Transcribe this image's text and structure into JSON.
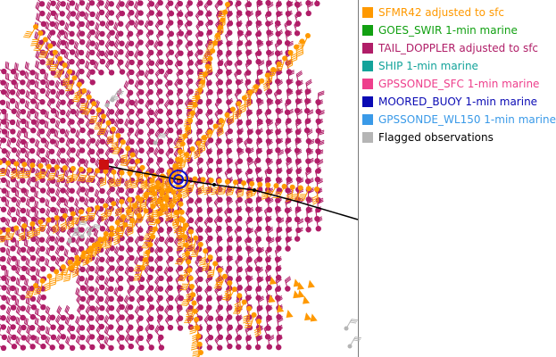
{
  "colors": {
    "sfmr": "#ff9900",
    "tail_doppler": "#b01e68",
    "track": "#000000",
    "center_marker": "#1010cc",
    "storm_square": "#cc1010",
    "flagged": "#b5b5b5"
  },
  "legend": {
    "items": [
      {
        "label": "SFMR42 adjusted to sfc",
        "swatch_color": "#ff9900",
        "text_color": "#ff9900"
      },
      {
        "label": "GOES_SWIR 1-min marine",
        "swatch_color": "#12a012",
        "text_color": "#12a012"
      },
      {
        "label": "TAIL_DOPPLER adjusted to sfc",
        "swatch_color": "#b01e68",
        "text_color": "#b01e68"
      },
      {
        "label": "SHIP 1-min marine",
        "swatch_color": "#13a39a",
        "text_color": "#13a39a"
      },
      {
        "label": "GPSSONDE_SFC 1-min marine",
        "swatch_color": "#ee3f8c",
        "text_color": "#ee3f8c"
      },
      {
        "label": "MOORED_BUOY 1-min marine",
        "swatch_color": "#0a0ab4",
        "text_color": "#0a0ab4"
      },
      {
        "label": "GPSSONDE_WL150 1-min marine",
        "swatch_color": "#3a9ae8",
        "text_color": "#3a9ae8"
      },
      {
        "label": "Flagged observations",
        "swatch_color": "#b5b5b5",
        "text_color": "#000000"
      }
    ]
  }
}
